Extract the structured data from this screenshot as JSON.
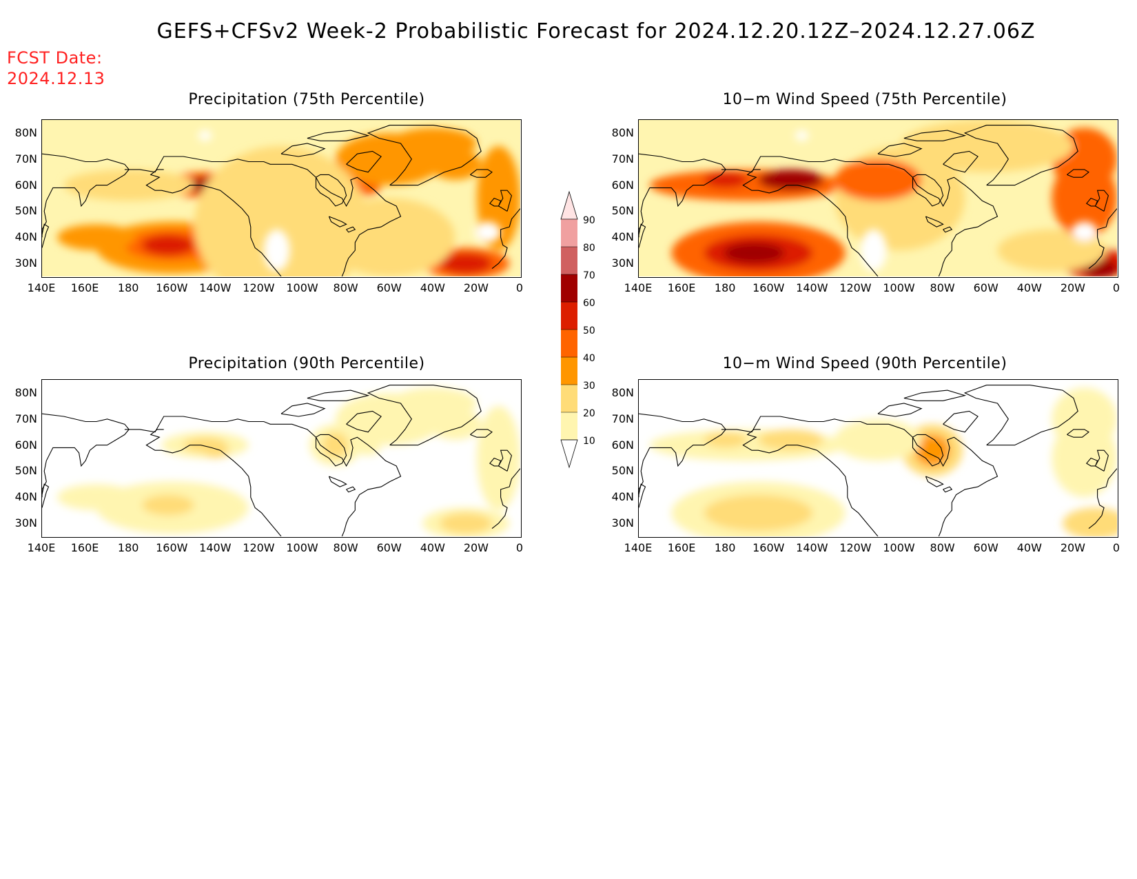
{
  "title": "GEFS+CFSv2 Week-2 Probabilistic Forecast for 2024.12.20.12Z–2024.12.27.06Z",
  "fcst_date_label": "FCST Date:",
  "fcst_date": "2024.12.13",
  "panels": [
    {
      "title": "Precipitation (75th Percentile)",
      "intensity": 1.0
    },
    {
      "title": "10−m Wind Speed (75th Percentile)",
      "intensity": 1.25
    },
    {
      "title": "Precipitation (90th Percentile)",
      "intensity": 0.45
    },
    {
      "title": "10−m Wind Speed (90th Percentile)",
      "intensity": 0.55
    }
  ],
  "lat_labels": [
    "80N",
    "70N",
    "60N",
    "50N",
    "40N",
    "30N"
  ],
  "lon_labels": [
    "140E",
    "160E",
    "180",
    "160W",
    "140W",
    "120W",
    "100W",
    "80W",
    "60W",
    "40W",
    "20W",
    "0"
  ],
  "colorbar": {
    "labels": [
      "90",
      "80",
      "70",
      "60",
      "50",
      "40",
      "30",
      "20",
      "10"
    ],
    "colors": [
      "#ffe4e4",
      "#f0a0a0",
      "#d06060",
      "#a00000",
      "#dc1e00",
      "#ff6400",
      "#ff9600",
      "#ffdc78",
      "#fff5b0",
      "#ffffff"
    ]
  },
  "colors": {
    "fcst_date": "#ff2020",
    "coastline": "#000000"
  }
}
